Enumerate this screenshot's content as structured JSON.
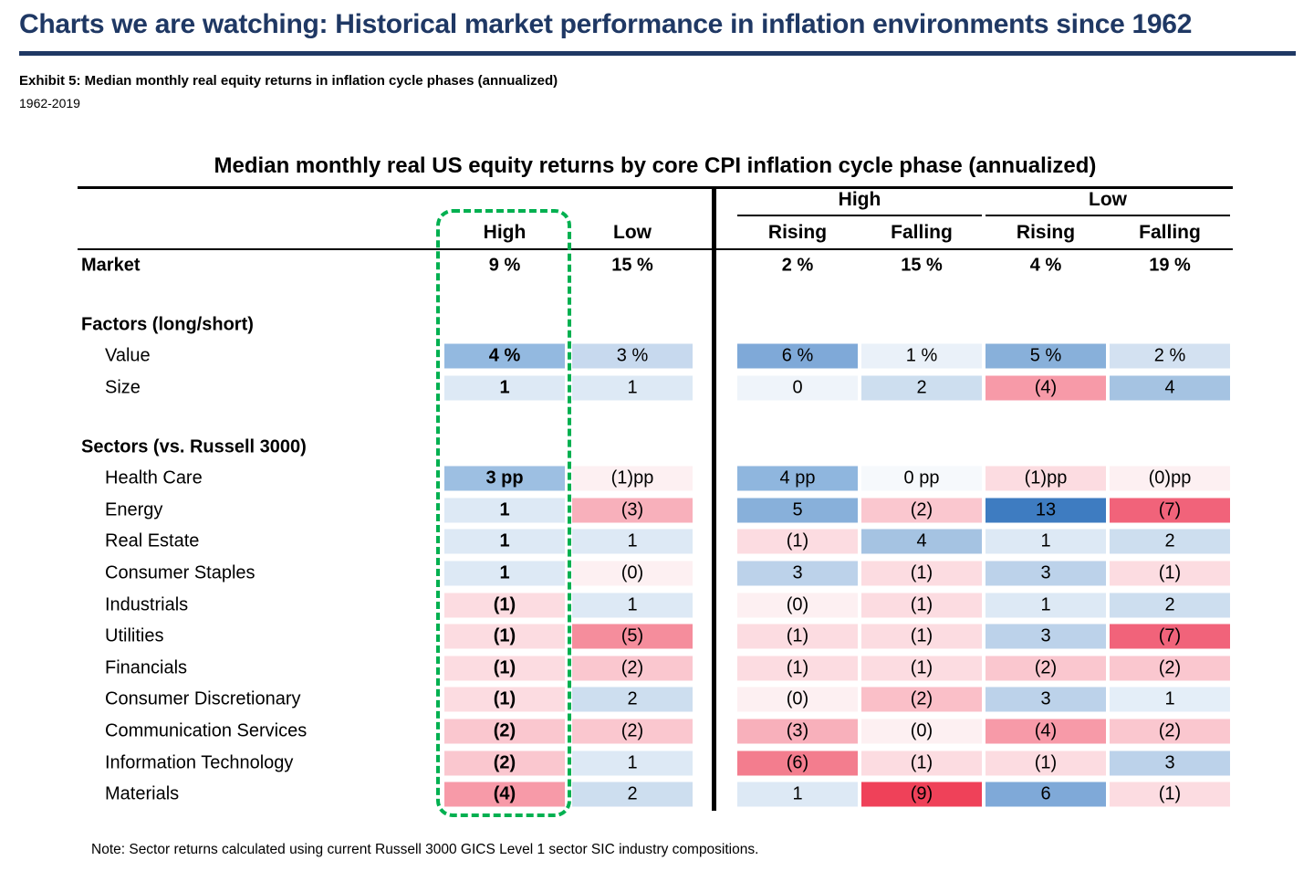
{
  "header": {
    "title": "Charts we are watching: Historical market performance in inflation environments since 1962",
    "exhibit": "Exhibit 5: Median monthly real equity returns in inflation cycle phases (annualized)",
    "period": "1962-2019"
  },
  "note": "Note: Sector returns calculated using current Russell 3000 GICS Level 1 sector SIC industry compositions.",
  "colors": {
    "heading": "#1f3864",
    "rule": "#1f3864",
    "divider": "#000000",
    "highlight_box": "#00b050"
  },
  "chart_data": {
    "type": "table",
    "title": "Median monthly real US equity returns by core CPI inflation cycle phase (annualized)",
    "column_groups": [
      {
        "label": "High"
      },
      {
        "label": "Low"
      }
    ],
    "columns": [
      "High",
      "Low",
      "Rising",
      "Falling",
      "Rising",
      "Falling"
    ],
    "rows": [
      {
        "type": "data",
        "label": "Market",
        "indent": false,
        "bold_label": true,
        "bold_values": true,
        "cells": [
          {
            "text": "9 %"
          },
          {
            "text": "15 %"
          },
          {
            "text": "2 %"
          },
          {
            "text": "15 %"
          },
          {
            "text": "4 %"
          },
          {
            "text": "19 %"
          }
        ]
      },
      {
        "type": "blank"
      },
      {
        "type": "section",
        "label": "Factors (long/short)"
      },
      {
        "type": "data",
        "label": "Value",
        "indent": true,
        "cells": [
          {
            "text": "4 %",
            "bg": "#93b9e0",
            "bold": true
          },
          {
            "text": "3 %",
            "bg": "#c7d9ee"
          },
          {
            "text": "6 %",
            "bg": "#7fa9d8"
          },
          {
            "text": "1 %",
            "bg": "#eaf1f9"
          },
          {
            "text": "5 %",
            "bg": "#88b0da"
          },
          {
            "text": "2 %",
            "bg": "#d3e1f1"
          }
        ]
      },
      {
        "type": "data",
        "label": "Size",
        "indent": true,
        "cells": [
          {
            "text": "1",
            "bg": "#dde9f5",
            "bold": true
          },
          {
            "text": "1",
            "bg": "#dde9f5"
          },
          {
            "text": "0",
            "bg": "#eff4fa"
          },
          {
            "text": "2",
            "bg": "#cddeef"
          },
          {
            "text": "(4)",
            "bg": "#f79aa8"
          },
          {
            "text": "4",
            "bg": "#a5c3e2"
          }
        ]
      },
      {
        "type": "blank"
      },
      {
        "type": "section",
        "label": "Sectors (vs. Russell 3000)"
      },
      {
        "type": "data",
        "label": "Health Care",
        "indent": true,
        "cells": [
          {
            "text": "3 pp",
            "bg": "#9dbfe2",
            "bold": true
          },
          {
            "text": "(1)pp",
            "bg": "#fdf0f2"
          },
          {
            "text": "4 pp",
            "bg": "#8fb6de"
          },
          {
            "text": "0 pp",
            "bg": "#f6f9fc"
          },
          {
            "text": "(1)pp",
            "bg": "#fcdce1"
          },
          {
            "text": "(0)pp",
            "bg": "#fdf0f2"
          }
        ]
      },
      {
        "type": "data",
        "label": "Energy",
        "indent": true,
        "cells": [
          {
            "text": "1",
            "bg": "#dde9f5",
            "bold": true
          },
          {
            "text": "(3)",
            "bg": "#f8b0bb"
          },
          {
            "text": "5",
            "bg": "#88b0da"
          },
          {
            "text": "(2)",
            "bg": "#fac7cf"
          },
          {
            "text": "13",
            "bg": "#3e7cc1"
          },
          {
            "text": "(7)",
            "bg": "#f1637a"
          }
        ]
      },
      {
        "type": "data",
        "label": "Real Estate",
        "indent": true,
        "cells": [
          {
            "text": "1",
            "bg": "#dde9f5",
            "bold": true
          },
          {
            "text": "1",
            "bg": "#dde9f5"
          },
          {
            "text": "(1)",
            "bg": "#fcdce1"
          },
          {
            "text": "4",
            "bg": "#a5c3e2"
          },
          {
            "text": "1",
            "bg": "#dde9f5"
          },
          {
            "text": "2",
            "bg": "#cddeef"
          }
        ]
      },
      {
        "type": "data",
        "label": "Consumer Staples",
        "indent": true,
        "cells": [
          {
            "text": "1",
            "bg": "#dde9f5",
            "bold": true
          },
          {
            "text": "(0)",
            "bg": "#fdf0f2"
          },
          {
            "text": "3",
            "bg": "#bcd2ea"
          },
          {
            "text": "(1)",
            "bg": "#fcdce1"
          },
          {
            "text": "3",
            "bg": "#bcd2ea"
          },
          {
            "text": "(1)",
            "bg": "#fcdce1"
          }
        ]
      },
      {
        "type": "data",
        "label": "Industrials",
        "indent": true,
        "cells": [
          {
            "text": "(1)",
            "bg": "#fcdce1",
            "bold": true
          },
          {
            "text": "1",
            "bg": "#dde9f5"
          },
          {
            "text": "(0)",
            "bg": "#fdf0f2"
          },
          {
            "text": "(1)",
            "bg": "#fcdce1"
          },
          {
            "text": "1",
            "bg": "#dde9f5"
          },
          {
            "text": "2",
            "bg": "#cddeef"
          }
        ]
      },
      {
        "type": "data",
        "label": "Utilities",
        "indent": true,
        "cells": [
          {
            "text": "(1)",
            "bg": "#fcdce1",
            "bold": true
          },
          {
            "text": "(5)",
            "bg": "#f58d9c"
          },
          {
            "text": "(1)",
            "bg": "#fcdce1"
          },
          {
            "text": "(1)",
            "bg": "#fcdce1"
          },
          {
            "text": "3",
            "bg": "#bcd2ea"
          },
          {
            "text": "(7)",
            "bg": "#f1637a"
          }
        ]
      },
      {
        "type": "data",
        "label": "Financials",
        "indent": true,
        "cells": [
          {
            "text": "(1)",
            "bg": "#fcdce1",
            "bold": true
          },
          {
            "text": "(2)",
            "bg": "#fac7cf"
          },
          {
            "text": "(1)",
            "bg": "#fcdce1"
          },
          {
            "text": "(1)",
            "bg": "#fcdce1"
          },
          {
            "text": "(2)",
            "bg": "#fac7cf"
          },
          {
            "text": "(2)",
            "bg": "#fac7cf"
          }
        ]
      },
      {
        "type": "data",
        "label": "Consumer Discretionary",
        "indent": true,
        "cells": [
          {
            "text": "(1)",
            "bg": "#fcdce1",
            "bold": true
          },
          {
            "text": "2",
            "bg": "#cddeef"
          },
          {
            "text": "(0)",
            "bg": "#fdf0f2"
          },
          {
            "text": "(2)",
            "bg": "#fabfc8"
          },
          {
            "text": "3",
            "bg": "#bcd2ea"
          },
          {
            "text": "1",
            "bg": "#e4eef8"
          }
        ]
      },
      {
        "type": "data",
        "label": "Communication Services",
        "indent": true,
        "cells": [
          {
            "text": "(2)",
            "bg": "#fac7cf",
            "bold": true
          },
          {
            "text": "(2)",
            "bg": "#fac7cf"
          },
          {
            "text": "(3)",
            "bg": "#f8b0bb"
          },
          {
            "text": "(0)",
            "bg": "#fdf0f2"
          },
          {
            "text": "(4)",
            "bg": "#f79aa8"
          },
          {
            "text": "(2)",
            "bg": "#fac7cf"
          }
        ]
      },
      {
        "type": "data",
        "label": "Information Technology",
        "indent": true,
        "cells": [
          {
            "text": "(2)",
            "bg": "#fac7cf",
            "bold": true
          },
          {
            "text": "1",
            "bg": "#dde9f5"
          },
          {
            "text": "(6)",
            "bg": "#f37d8e"
          },
          {
            "text": "(1)",
            "bg": "#fcdce1"
          },
          {
            "text": "(1)",
            "bg": "#fcdce1"
          },
          {
            "text": "3",
            "bg": "#bcd2ea"
          }
        ]
      },
      {
        "type": "data",
        "label": "Materials",
        "indent": true,
        "cells": [
          {
            "text": "(4)",
            "bg": "#f79aa8",
            "bold": true
          },
          {
            "text": "2",
            "bg": "#cddeef"
          },
          {
            "text": "1",
            "bg": "#dde9f5"
          },
          {
            "text": "(9)",
            "bg": "#ef4159"
          },
          {
            "text": "6",
            "bg": "#7fa9d8"
          },
          {
            "text": "(1)",
            "bg": "#fcdce1"
          }
        ]
      }
    ]
  }
}
